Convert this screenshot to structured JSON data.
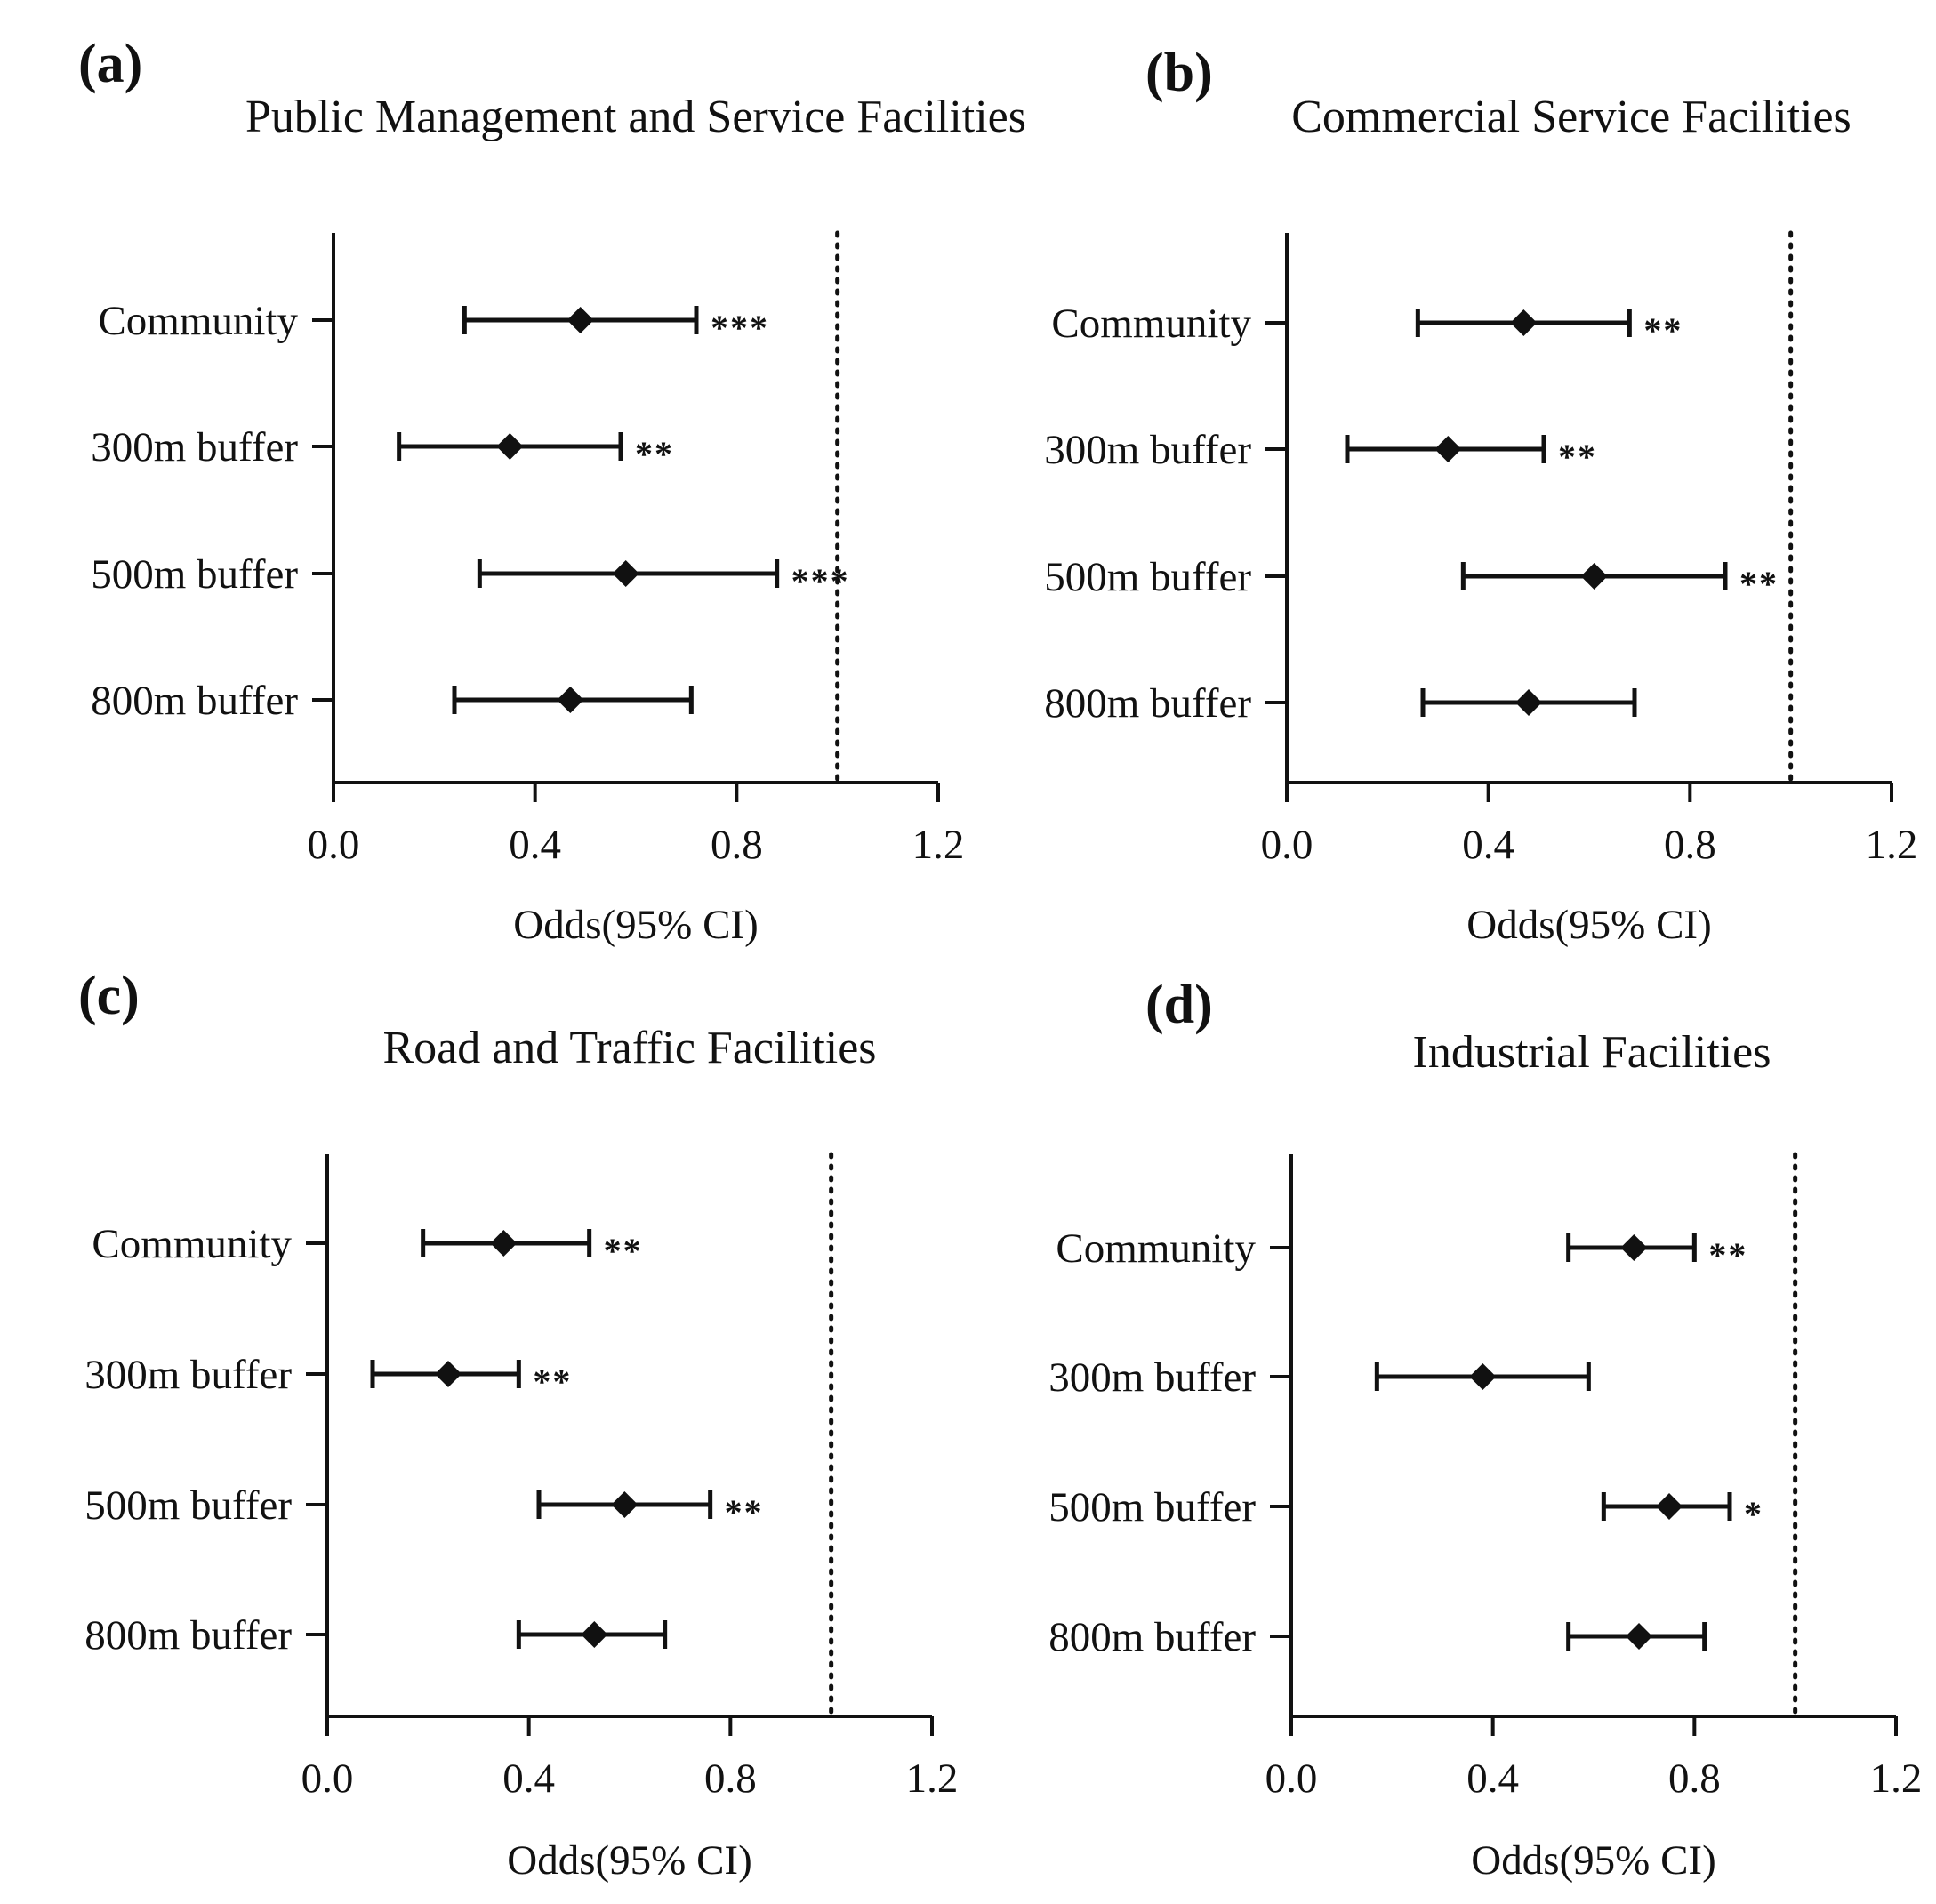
{
  "chart_data": [
    {
      "type": "forest",
      "panel_label": "(a)",
      "title": "Public Management and Service Facilities",
      "xlabel": "Odds(95% CI)",
      "xlim": [
        0,
        1.2
      ],
      "xticks": [
        "0.0",
        "0.4",
        "0.8",
        "1.2"
      ],
      "reference_line": 1.0,
      "rows": [
        {
          "label": "Community",
          "estimate": 0.49,
          "lower": 0.26,
          "upper": 0.72,
          "sig": "***"
        },
        {
          "label": "300m buffer",
          "estimate": 0.35,
          "lower": 0.13,
          "upper": 0.57,
          "sig": "**"
        },
        {
          "label": "500m buffer",
          "estimate": 0.58,
          "lower": 0.29,
          "upper": 0.88,
          "sig": "***"
        },
        {
          "label": "800m buffer",
          "estimate": 0.47,
          "lower": 0.24,
          "upper": 0.71,
          "sig": ""
        }
      ]
    },
    {
      "type": "forest",
      "panel_label": "(b)",
      "title": "Commercial Service Facilities",
      "xlabel": "Odds(95% CI)",
      "xlim": [
        0,
        1.2
      ],
      "xticks": [
        "0.0",
        "0.4",
        "0.8",
        "1.2"
      ],
      "reference_line": 1.0,
      "rows": [
        {
          "label": "Community",
          "estimate": 0.47,
          "lower": 0.26,
          "upper": 0.68,
          "sig": "**"
        },
        {
          "label": "300m buffer",
          "estimate": 0.32,
          "lower": 0.12,
          "upper": 0.51,
          "sig": "**"
        },
        {
          "label": "500m buffer",
          "estimate": 0.61,
          "lower": 0.35,
          "upper": 0.87,
          "sig": "**"
        },
        {
          "label": "800m buffer",
          "estimate": 0.48,
          "lower": 0.27,
          "upper": 0.69,
          "sig": ""
        }
      ]
    },
    {
      "type": "forest",
      "panel_label": "(c)",
      "title": "Road and Traffic Facilities",
      "xlabel": "Odds(95% CI)",
      "xlim": [
        0,
        1.2
      ],
      "xticks": [
        "0.0",
        "0.4",
        "0.8",
        "1.2"
      ],
      "reference_line": 1.0,
      "rows": [
        {
          "label": "Community",
          "estimate": 0.35,
          "lower": 0.19,
          "upper": 0.52,
          "sig": "**"
        },
        {
          "label": "300m buffer",
          "estimate": 0.24,
          "lower": 0.09,
          "upper": 0.38,
          "sig": "**"
        },
        {
          "label": "500m buffer",
          "estimate": 0.59,
          "lower": 0.42,
          "upper": 0.76,
          "sig": "**"
        },
        {
          "label": "800m buffer",
          "estimate": 0.53,
          "lower": 0.38,
          "upper": 0.67,
          "sig": ""
        }
      ]
    },
    {
      "type": "forest",
      "panel_label": "(d)",
      "title": "Industrial  Facilities",
      "xlabel": "Odds(95% CI)",
      "xlim": [
        0,
        1.2
      ],
      "xticks": [
        "0.0",
        "0.4",
        "0.8",
        "1.2"
      ],
      "reference_line": 1.0,
      "rows": [
        {
          "label": "Community",
          "estimate": 0.68,
          "lower": 0.55,
          "upper": 0.8,
          "sig": "**"
        },
        {
          "label": "300m buffer",
          "estimate": 0.38,
          "lower": 0.17,
          "upper": 0.59,
          "sig": ""
        },
        {
          "label": "500m buffer",
          "estimate": 0.75,
          "lower": 0.62,
          "upper": 0.87,
          "sig": "*"
        },
        {
          "label": "800m buffer",
          "estimate": 0.69,
          "lower": 0.55,
          "upper": 0.82,
          "sig": ""
        }
      ]
    }
  ]
}
